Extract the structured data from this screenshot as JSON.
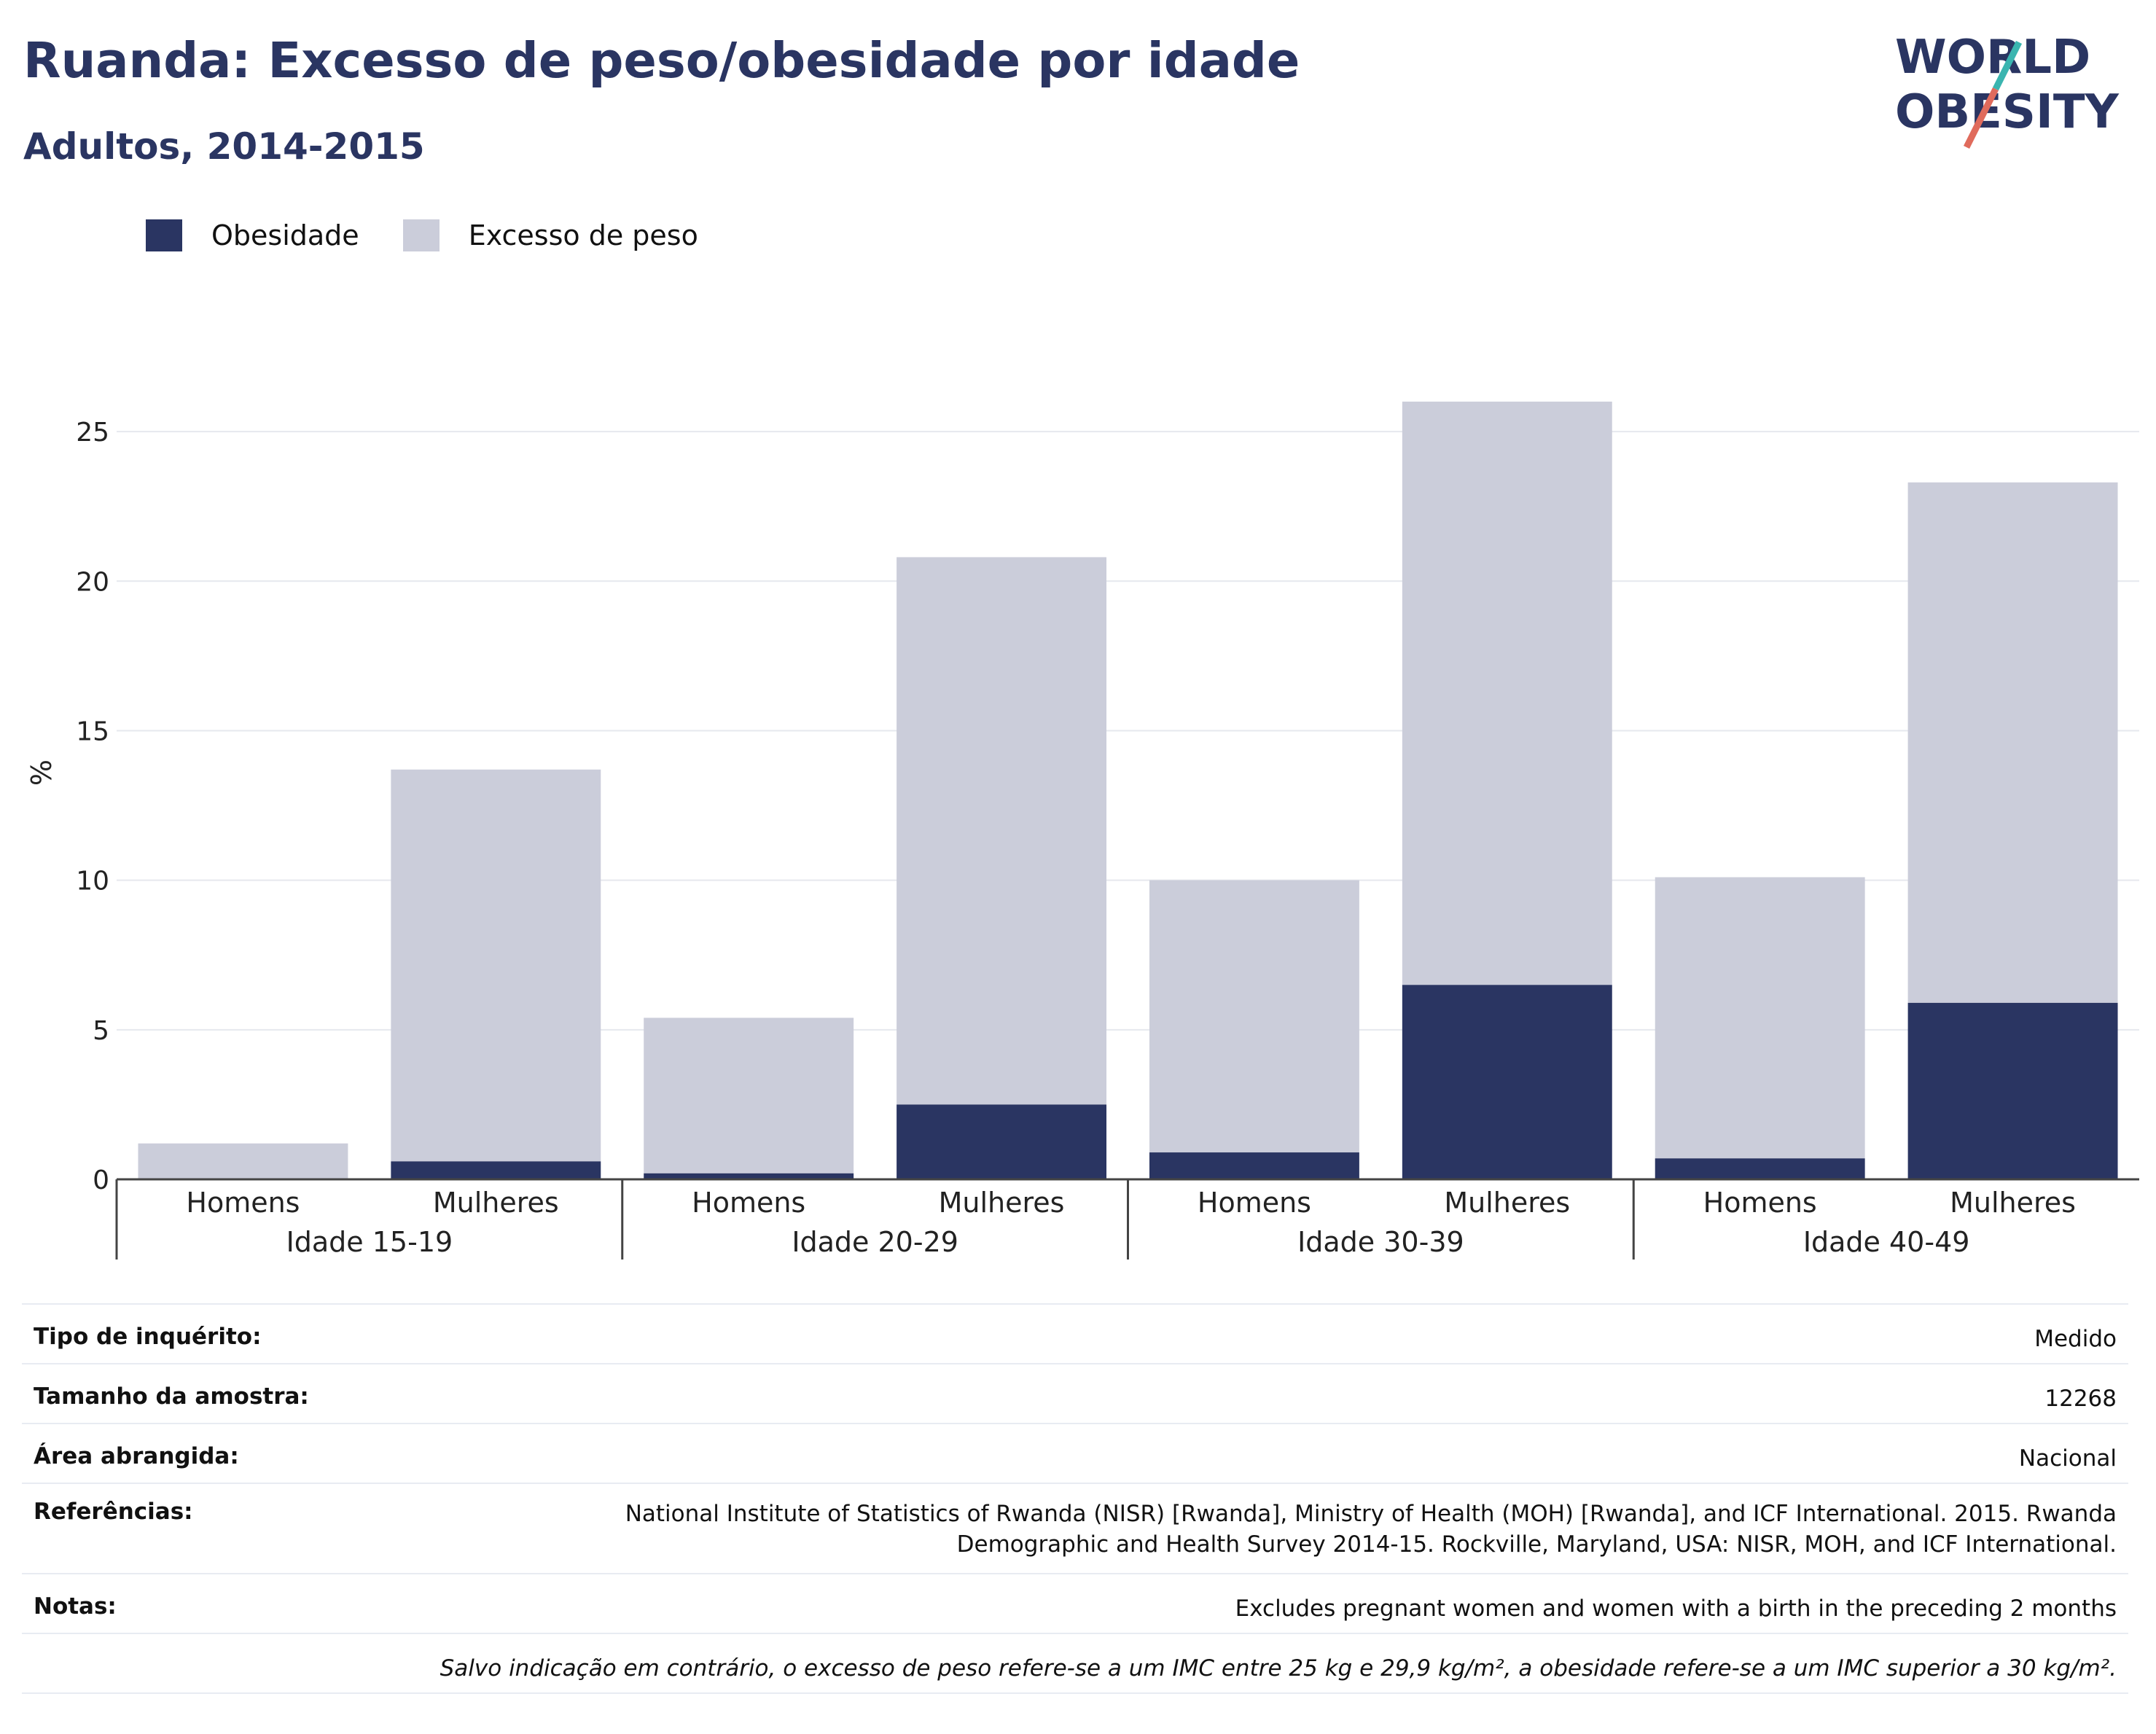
{
  "header": {
    "title": "Ruanda: Excesso de peso/obesidade por idade",
    "subtitle": "Adultos, 2014-2015"
  },
  "logo": {
    "line1": "WORLD",
    "line2": "OBESITY"
  },
  "legend": [
    {
      "label": "Obesidade",
      "color": "#2a3562"
    },
    {
      "label": "Excesso de peso",
      "color": "#cbcdda"
    }
  ],
  "chart_data": {
    "type": "bar",
    "stacked": true,
    "ylabel": "%",
    "ylim": [
      0,
      27
    ],
    "yticks": [
      0,
      5,
      10,
      15,
      20,
      25
    ],
    "groups": [
      "Idade 15-19",
      "Idade 20-29",
      "Idade 30-39",
      "Idade 40-49"
    ],
    "subcategories": [
      "Homens",
      "Mulheres"
    ],
    "series": [
      {
        "name": "Obesidade",
        "color": "#2a3562",
        "values": [
          0.0,
          0.6,
          0.2,
          2.5,
          0.9,
          6.5,
          0.7,
          5.9
        ]
      },
      {
        "name": "Excesso de peso",
        "color": "#cbcdda",
        "values": [
          1.2,
          13.1,
          5.2,
          18.3,
          9.1,
          19.5,
          9.4,
          17.4
        ]
      }
    ],
    "grid": true,
    "legend_position": "top-left"
  },
  "info": {
    "rows": [
      {
        "key": "Tipo de inquérito:",
        "value": "Medido"
      },
      {
        "key": "Tamanho da amostra:",
        "value": "12268"
      },
      {
        "key": "Área abrangida:",
        "value": "Nacional"
      },
      {
        "key": "Referências:",
        "value_line1": "National Institute of Statistics of Rwanda (NISR) [Rwanda], Ministry of Health (MOH) [Rwanda], and ICF International. 2015. Rwanda",
        "value_line2": "Demographic and Health Survey 2014-15. Rockville, Maryland, USA: NISR, MOH, and ICF International."
      },
      {
        "key": "Notas:",
        "value": "Excludes pregnant women and women with a birth in the preceding 2 months"
      }
    ],
    "footnote": "Salvo indicação em contrário, o excesso de peso refere-se a um IMC entre 25 kg e 29,9 kg/m², a obesidade refere-se a um IMC superior a 30 kg/m²."
  }
}
